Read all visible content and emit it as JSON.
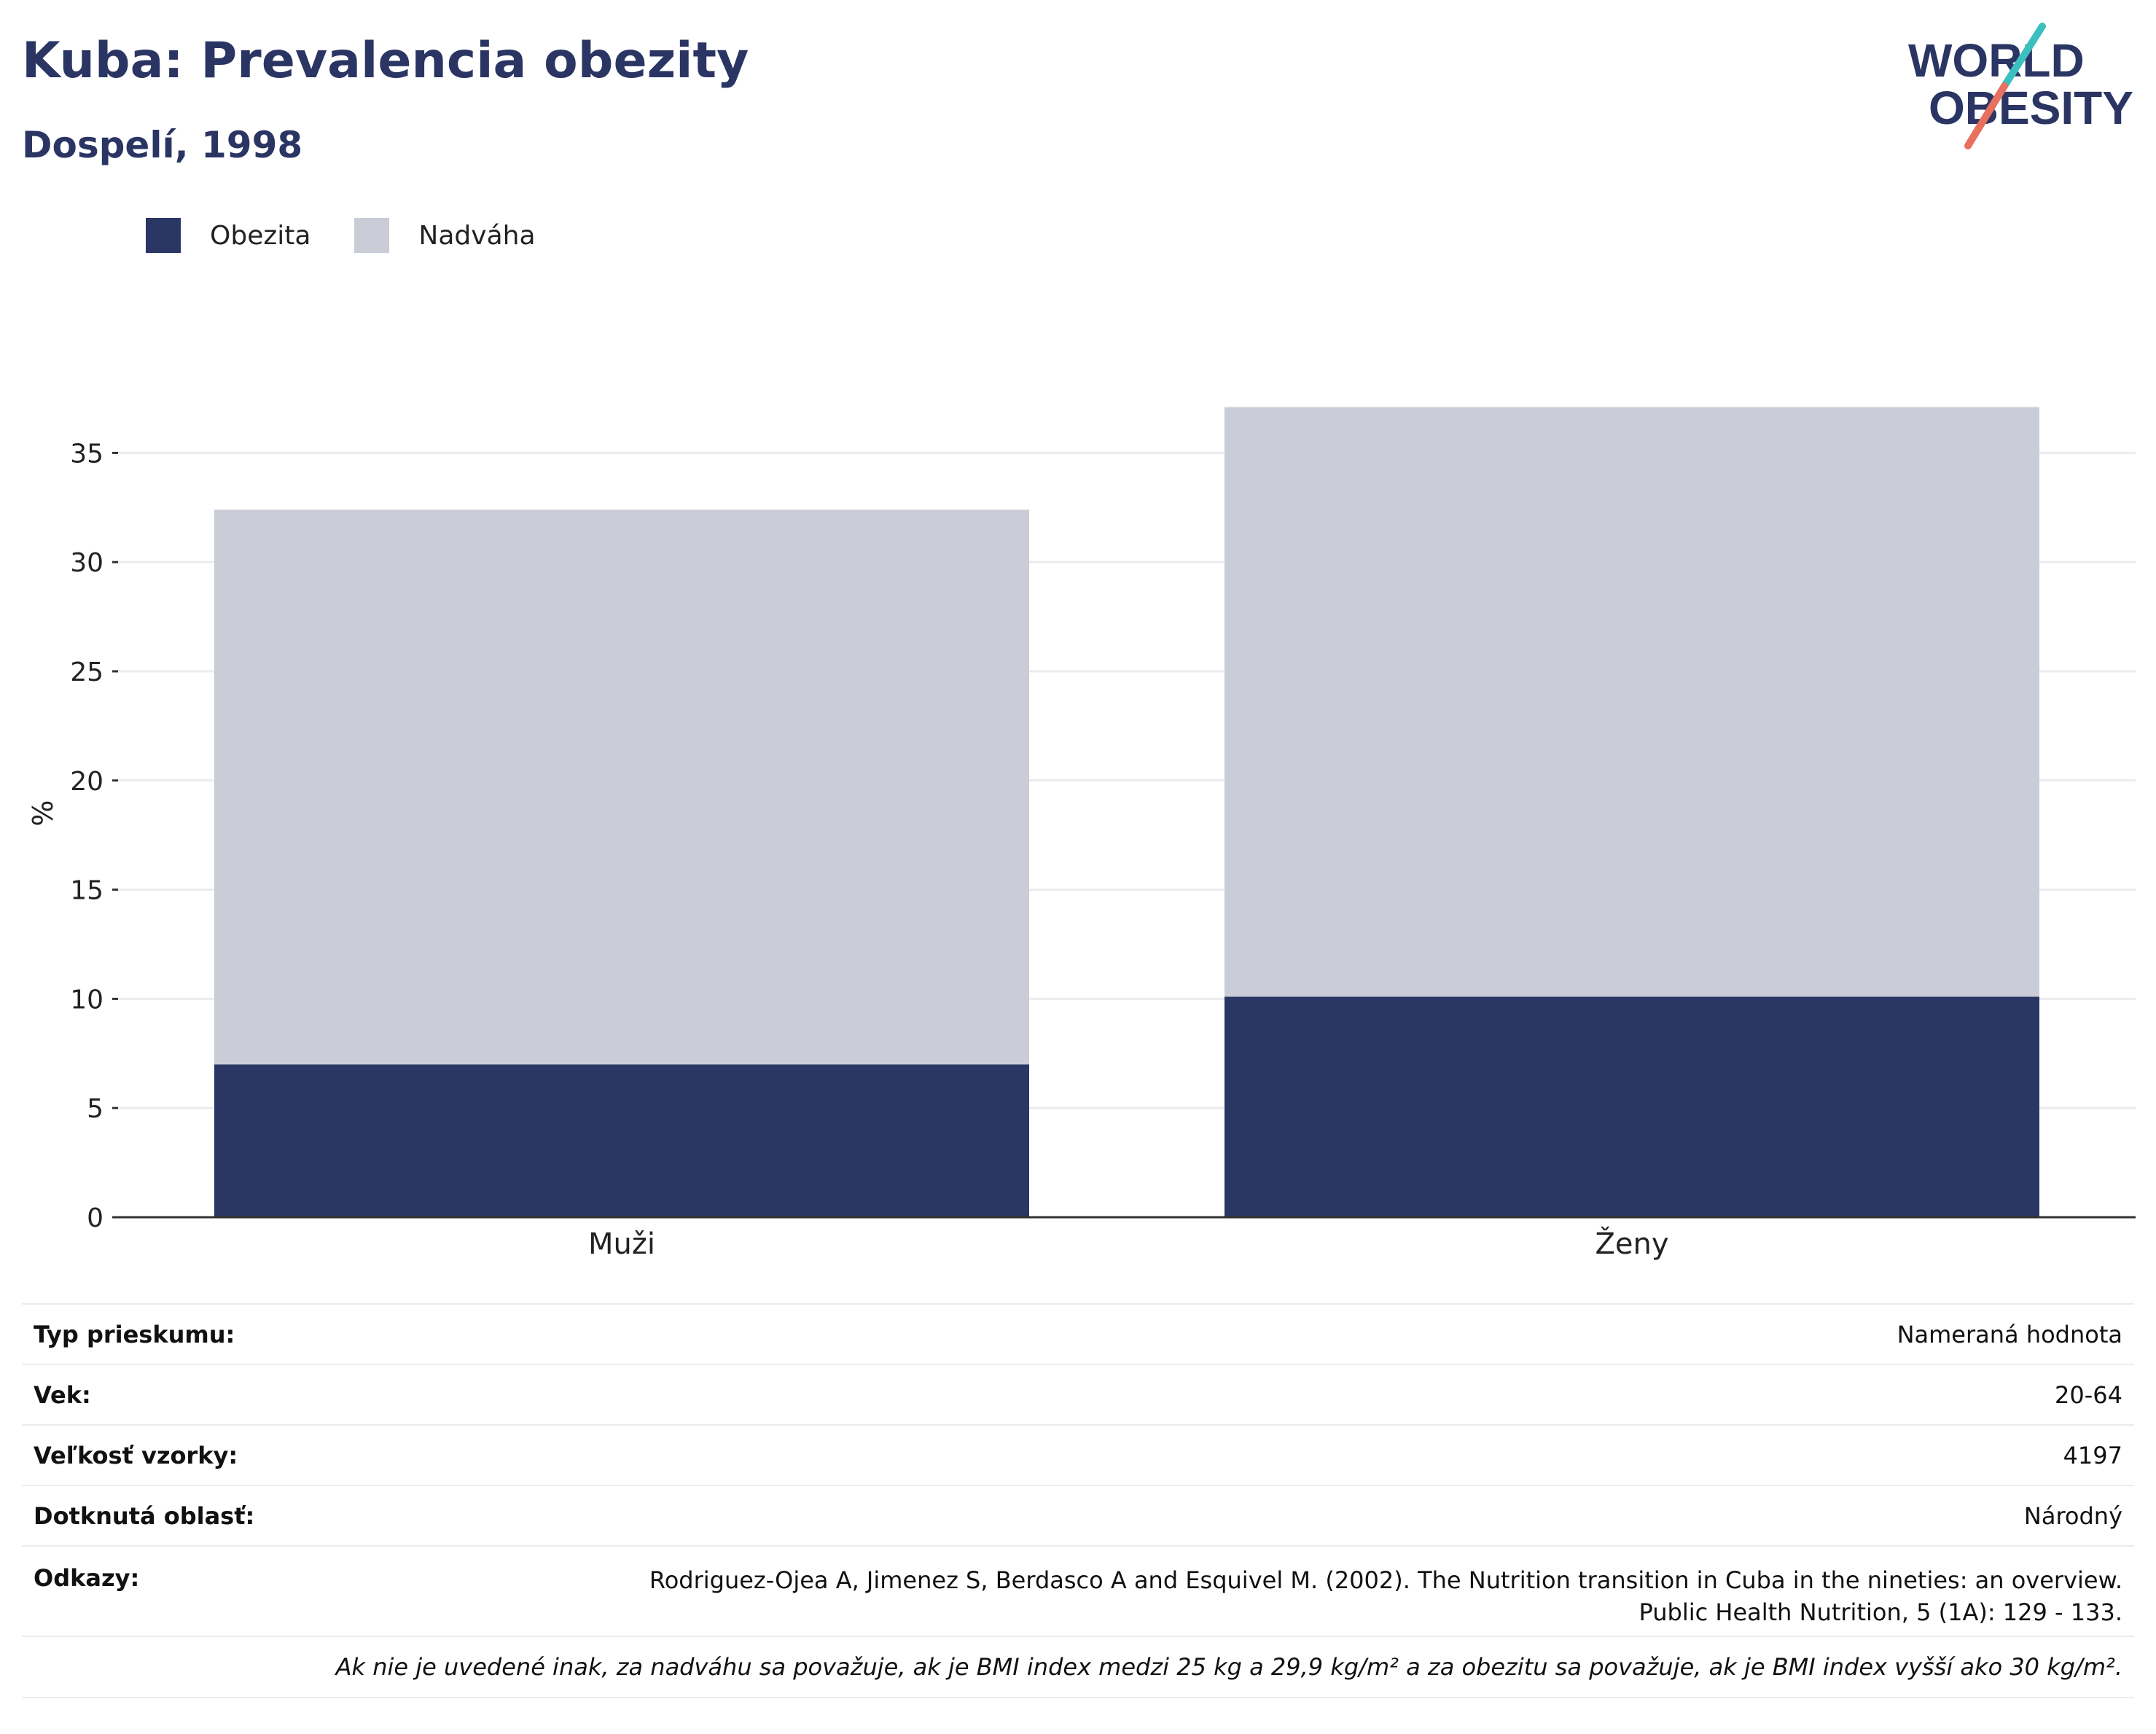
{
  "header": {
    "title": "Kuba: Prevalencia obezity",
    "subtitle": "Dospelí, 1998"
  },
  "logo": {
    "line1": "WORLD",
    "line2": "OBESITY"
  },
  "colors": {
    "obesity": "#2a3663",
    "overweight": "#cacdd8",
    "text": "#2a3563",
    "grid": "#ebebf0",
    "axis": "#333333"
  },
  "chart_data": {
    "type": "bar",
    "stacked": true,
    "categories": [
      "Muži",
      "Ženy"
    ],
    "series": [
      {
        "name": "Obezita",
        "values": [
          7.0,
          10.1
        ]
      },
      {
        "name": "Nadváha",
        "values": [
          25.4,
          27.0
        ]
      }
    ],
    "ylabel": "%",
    "ylim": [
      0,
      37
    ],
    "yticks": [
      0,
      5,
      10,
      15,
      20,
      25,
      30,
      35
    ],
    "legend_position": "top-left",
    "grid": true
  },
  "info": {
    "rows": [
      {
        "label": "Typ prieskumu:",
        "value": "Nameraná hodnota"
      },
      {
        "label": "Vek:",
        "value": "20-64"
      },
      {
        "label": "Veľkosť vzorky:",
        "value": "4197"
      },
      {
        "label": "Dotknutá oblasť:",
        "value": "Národný"
      },
      {
        "label": "Odkazy:",
        "value": "Rodriguez-Ojea A, Jimenez S, Berdasco A and Esquivel M. (2002). The Nutrition transition in Cuba in the nineties: an overview. Public Health Nutrition, 5 (1A): 129 - 133."
      }
    ],
    "note": "Ak nie je uvedené inak, za nadváhu sa považuje, ak je BMI index medzi 25 kg a 29,9 kg/m² a za obezitu sa považuje, ak je BMI index vyšší ako 30 kg/m²."
  }
}
